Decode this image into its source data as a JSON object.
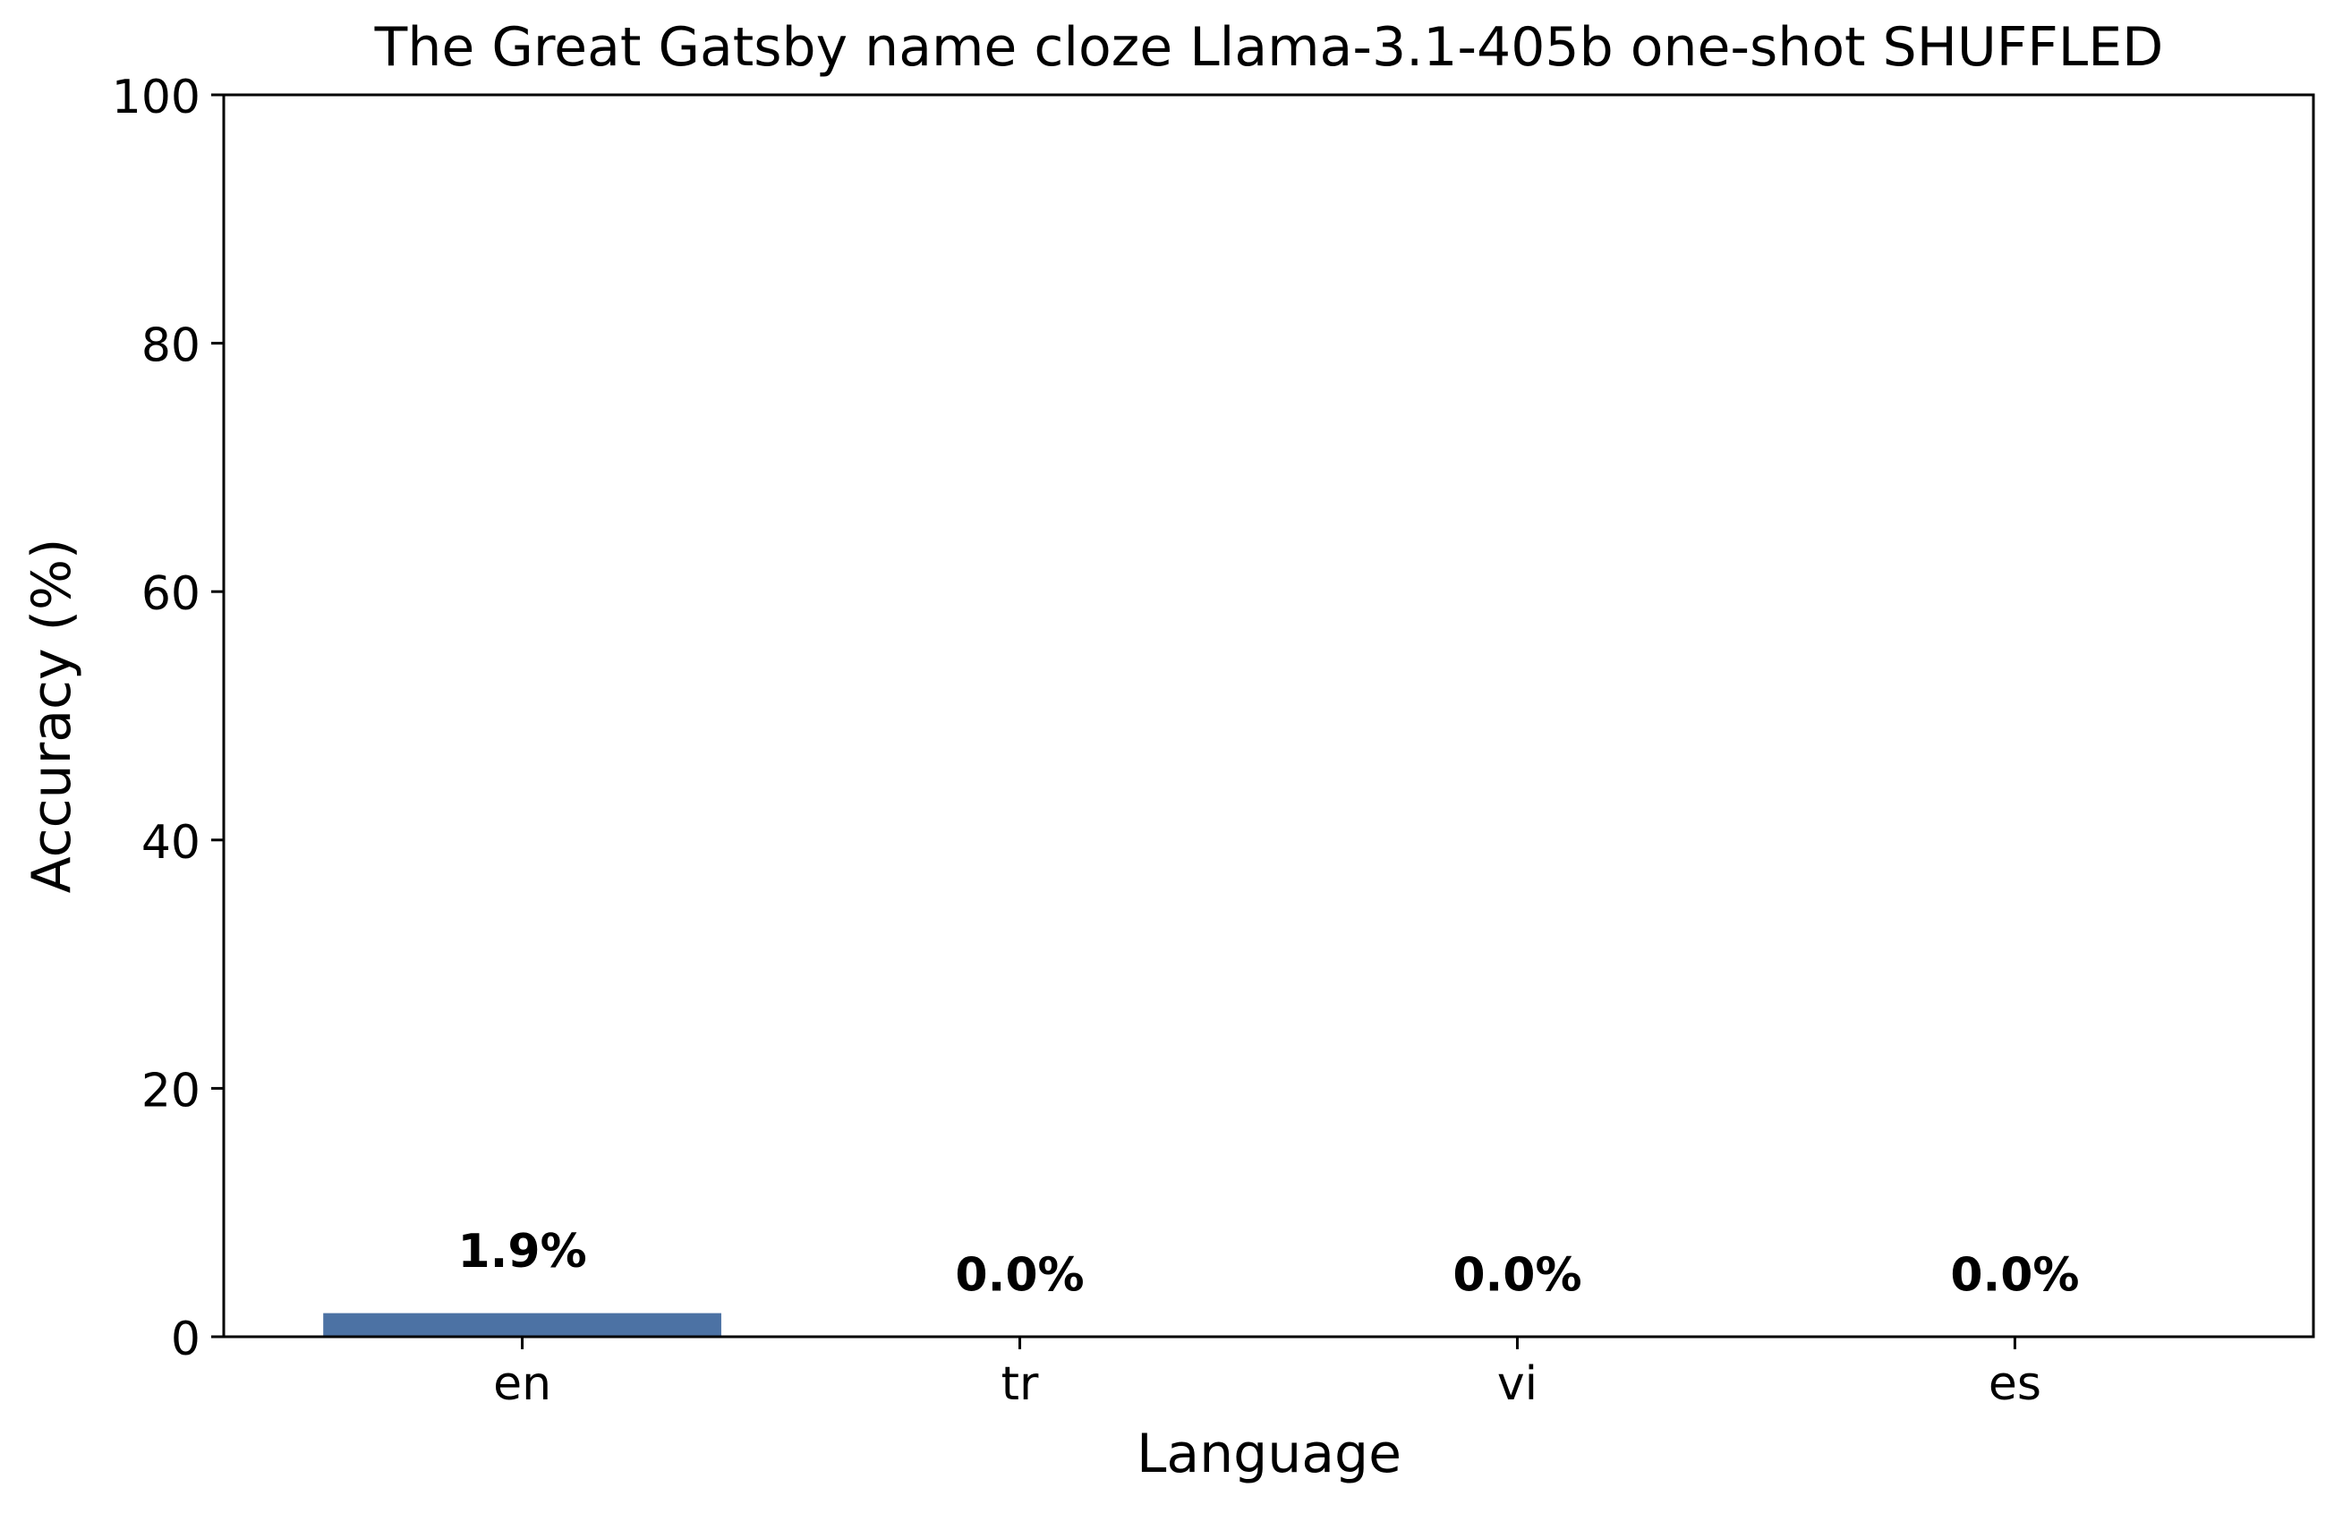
{
  "chart_data": {
    "type": "bar",
    "title": "The Great Gatsby name cloze Llama-3.1-405b one-shot SHUFFLED",
    "xlabel": "Language",
    "ylabel": "Accuracy (%)",
    "categories": [
      "en",
      "tr",
      "vi",
      "es"
    ],
    "values": [
      1.9,
      0.0,
      0.0,
      0.0
    ],
    "value_labels": [
      "1.9%",
      "0.0%",
      "0.0%",
      "0.0%"
    ],
    "ylim": [
      0,
      100
    ],
    "yticks": [
      0,
      20,
      40,
      60,
      80,
      100
    ],
    "ytick_labels": [
      "0",
      "20",
      "40",
      "60",
      "80",
      "100"
    ],
    "grid": false,
    "legend": "none",
    "bar_color": "#4c72a4"
  }
}
